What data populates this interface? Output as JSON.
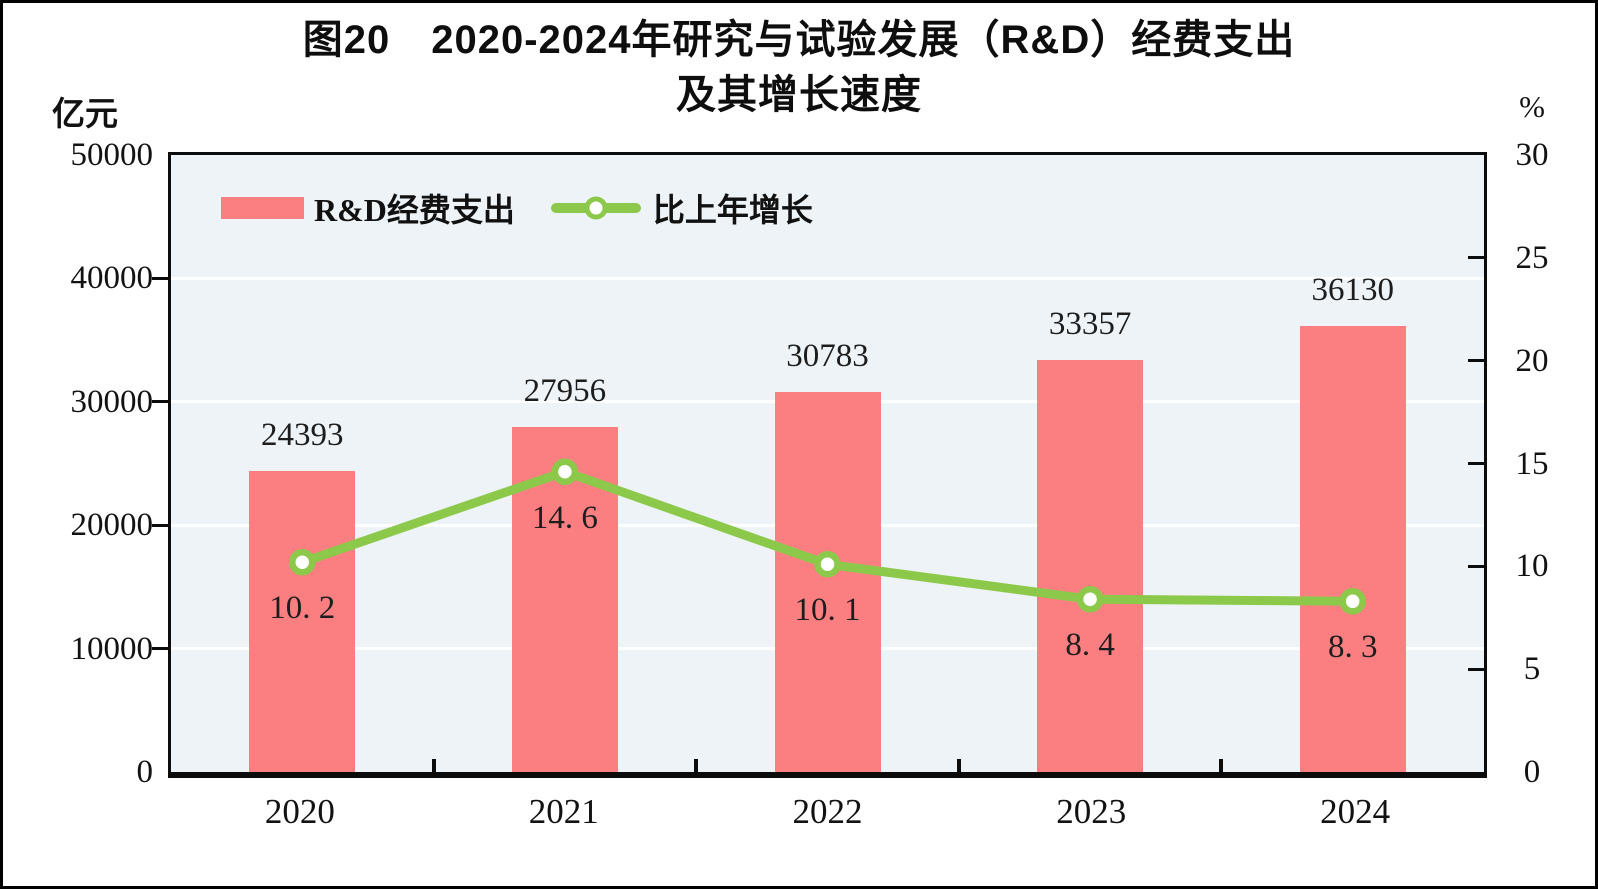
{
  "title": {
    "line1": "图20　2020-2024年研究与试验发展（R&D）经费支出",
    "line2": "及其增长速度"
  },
  "axes": {
    "left_unit": "亿元",
    "right_unit": "%"
  },
  "legend": {
    "bar": "R&D经费支出",
    "line": "比上年增长"
  },
  "labels": {
    "bar_values": [
      "24393",
      "27956",
      "30783",
      "33357",
      "36130"
    ],
    "line_values": [
      "10. 2",
      "14. 6",
      "10. 1",
      "8. 4",
      "8. 3"
    ]
  },
  "chart_data": {
    "type": "bar",
    "subtype": "combo dual-axis: bars (left axis) + line with circle markers (right axis)",
    "title": "图20 2020-2024年研究与试验发展（R&D）经费支出及其增长速度",
    "categories": [
      "2020",
      "2021",
      "2022",
      "2023",
      "2024"
    ],
    "series": [
      {
        "name": "R&D经费支出",
        "type": "bar",
        "axis": "left",
        "unit": "亿元",
        "values": [
          24393,
          27956,
          30783,
          33357,
          36130
        ],
        "color": "#fb7f80"
      },
      {
        "name": "比上年增长",
        "type": "line",
        "axis": "right",
        "unit": "%",
        "values": [
          10.2,
          14.6,
          10.1,
          8.4,
          8.3
        ],
        "color": "#8cc94b",
        "marker": "circle, white fill, green stroke"
      }
    ],
    "left_axis": {
      "label": "亿元",
      "min": 0,
      "max": 50000,
      "ticks": [
        50000,
        40000,
        30000,
        20000,
        10000,
        0
      ]
    },
    "right_axis": {
      "label": "%",
      "min": 0,
      "max": 30,
      "ticks": [
        30,
        25,
        20,
        15,
        10,
        5,
        0
      ]
    },
    "grid": {
      "horizontal_white_lines_at_left_axis_ticks": true
    },
    "legend_position": "top-left inside plot",
    "plot_background": "#edf3f7",
    "frame_border": "#000000"
  }
}
